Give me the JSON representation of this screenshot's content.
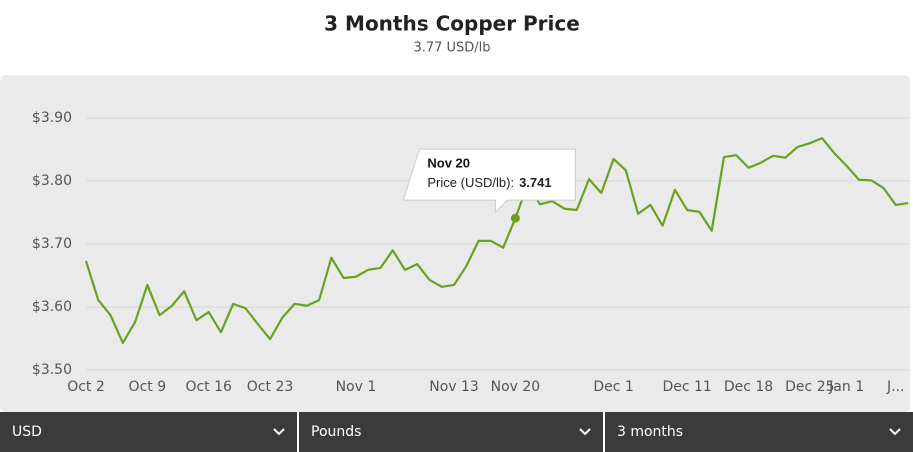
{
  "chart_data": {
    "type": "line",
    "title": "3 Months Copper Price",
    "subtitle": "3.77 USD/lb",
    "categories": [
      "Oct 2",
      null,
      null,
      null,
      null,
      "Oct 9",
      null,
      null,
      null,
      null,
      "Oct 16",
      null,
      null,
      null,
      null,
      "Oct 23",
      null,
      null,
      null,
      null,
      null,
      null,
      "Nov 1",
      null,
      null,
      null,
      null,
      null,
      null,
      null,
      "Nov 13",
      null,
      null,
      null,
      null,
      "Nov 20",
      null,
      null,
      null,
      null,
      null,
      null,
      null,
      "Dec 1",
      null,
      null,
      null,
      null,
      null,
      "Dec 11",
      null,
      null,
      null,
      null,
      "Dec 18",
      null,
      null,
      null,
      null,
      "Dec 25",
      null,
      null,
      "Jan 1",
      null,
      null,
      null,
      "J...",
      null
    ],
    "series": [
      {
        "name": "Price (USD/lb)",
        "color": "#6aa121",
        "values": [
          3.673,
          3.611,
          3.587,
          3.543,
          3.576,
          3.635,
          3.587,
          3.602,
          3.625,
          3.579,
          3.592,
          3.56,
          3.605,
          3.598,
          3.573,
          3.549,
          3.583,
          3.605,
          3.602,
          3.611,
          3.678,
          3.646,
          3.648,
          3.659,
          3.662,
          3.69,
          3.659,
          3.668,
          3.643,
          3.632,
          3.635,
          3.665,
          3.705,
          3.705,
          3.694,
          3.741,
          3.795,
          3.763,
          3.768,
          3.756,
          3.754,
          3.803,
          3.781,
          3.835,
          3.817,
          3.748,
          3.762,
          3.729,
          3.786,
          3.754,
          3.751,
          3.721,
          3.838,
          3.841,
          3.821,
          3.829,
          3.84,
          3.837,
          3.854,
          3.86,
          3.868,
          3.844,
          3.824,
          3.802,
          3.801,
          3.789,
          3.762,
          3.765
        ]
      }
    ],
    "ylim": [
      3.5,
      3.9
    ],
    "yticks": [
      {
        "value": 3.5,
        "label": "$3.50"
      },
      {
        "value": 3.6,
        "label": "$3.60"
      },
      {
        "value": 3.7,
        "label": "$3.70"
      },
      {
        "value": 3.8,
        "label": "$3.80"
      },
      {
        "value": 3.9,
        "label": "$3.90"
      }
    ],
    "grid": true,
    "tooltip": {
      "index": 35,
      "title": "Nov 20",
      "label": "Price (USD/lb):",
      "value": 3.741
    }
  },
  "controls": [
    "USD",
    "Pounds",
    "3 months"
  ]
}
